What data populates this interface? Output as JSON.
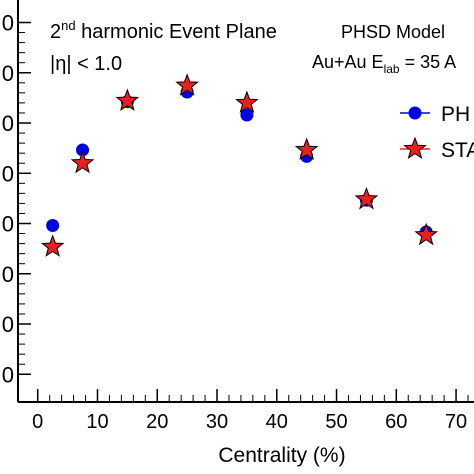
{
  "chart_data": {
    "type": "scatter",
    "title": "",
    "xlabel": "Centrality (%)",
    "ylabel": "",
    "xlim": [
      -3.3,
      73
    ],
    "ylim": [
      0,
      1
    ],
    "grid": false,
    "legend_position": "top-right",
    "x_ticks": [
      0,
      10,
      20,
      30,
      40,
      50,
      60,
      70
    ],
    "x_tick_labels": [
      "0",
      "10",
      "20",
      "30",
      "40",
      "50",
      "60",
      "70"
    ],
    "y_ticks": [
      0.069,
      0.194,
      0.319,
      0.444,
      0.569,
      0.694,
      0.819,
      0.944
    ],
    "y_tick_labels": [
      "0",
      "0",
      "0",
      "0",
      "0",
      "0",
      "0",
      "0"
    ],
    "annotations": {
      "line1_main": "2",
      "line1_sup": "nd",
      "line1_rest": " harmonic Event Plane",
      "line2": "|η| < 1.0",
      "model": "PHSD Model",
      "system_main": "Au+Au E",
      "system_sub": "lab",
      "system_rest": " = 35 A"
    },
    "series": [
      {
        "name": "PH",
        "marker": "circle",
        "color": "#0000e6",
        "x": [
          2.5,
          7.5,
          15,
          25,
          35,
          45,
          55,
          65
        ],
        "y": [
          0.439,
          0.627,
          0.747,
          0.771,
          0.714,
          0.611,
          0.502,
          0.423
        ]
      },
      {
        "name": "STA",
        "marker": "star",
        "color": "#e8201e",
        "x": [
          2.5,
          7.5,
          15,
          25,
          35,
          45,
          55,
          65
        ],
        "y": [
          0.386,
          0.594,
          0.749,
          0.787,
          0.744,
          0.627,
          0.504,
          0.415
        ]
      }
    ]
  },
  "colors": {
    "axis": "#000000",
    "star_outline": "#000000"
  }
}
